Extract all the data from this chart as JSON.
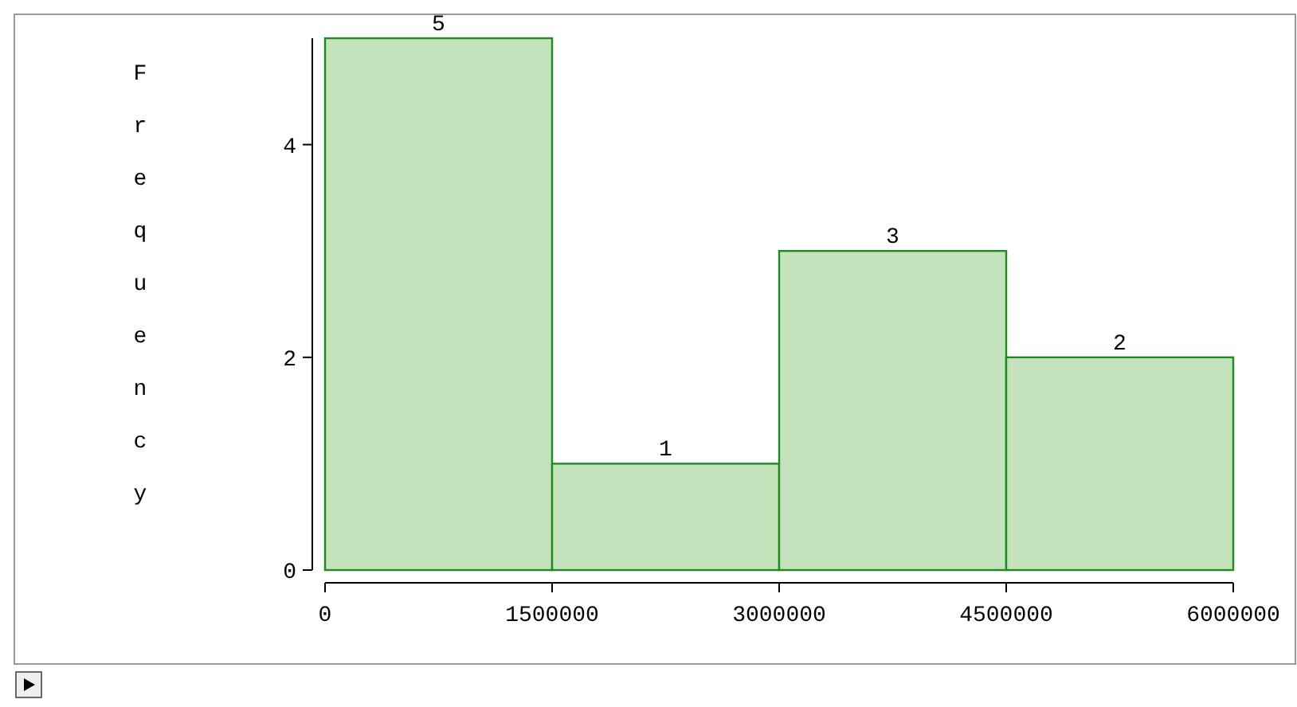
{
  "chart_data": {
    "type": "histogram",
    "ylabel": "Frequency",
    "bins": [
      0,
      1500000,
      3000000,
      4500000,
      6000000
    ],
    "values": [
      5,
      1,
      3,
      2
    ],
    "color": "#c4e3bd",
    "data_labels": true,
    "xlim": [
      0,
      6000000
    ],
    "xticks": [
      0,
      1500000,
      3000000,
      4500000,
      6000000
    ],
    "ylim": [
      0,
      5
    ],
    "yticks": [
      0,
      2,
      4
    ],
    "grid": false
  }
}
